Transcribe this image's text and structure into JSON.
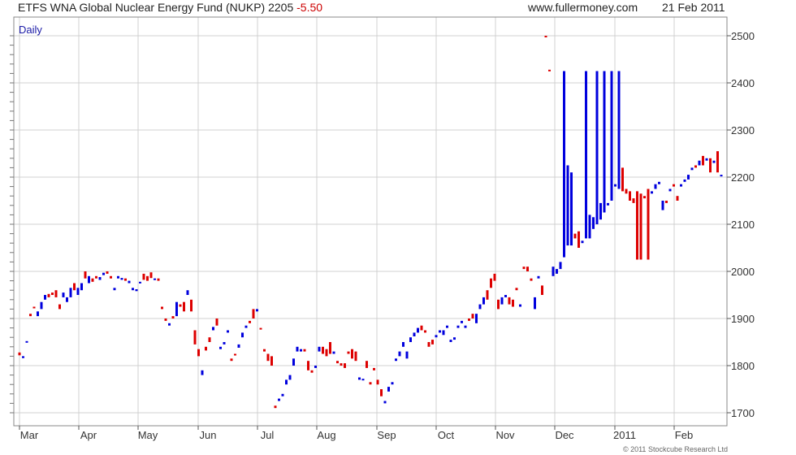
{
  "header": {
    "title": "ETFS WNA Global Nuclear Energy Fund (NUKP) 2205",
    "change": "-5.50",
    "site": "www.fullermoney.com",
    "date": "21 Feb 2011"
  },
  "footer": {
    "copyright": "© 2011 Stockcube Research Ltd"
  },
  "chart_data": {
    "type": "candlestick",
    "period_label": "Daily",
    "x_ticks": [
      "Mar",
      "Apr",
      "May",
      "Jun",
      "Jul",
      "Aug",
      "Sep",
      "Oct",
      "Nov",
      "Dec",
      "2011",
      "Feb"
    ],
    "y_ticks": [
      1700,
      1800,
      1900,
      2000,
      2100,
      2200,
      2300,
      2400,
      2500
    ],
    "ylim": [
      1680,
      2520
    ],
    "grid": true,
    "up_color": "#0000dd",
    "down_color": "#dd0000",
    "candles": [
      {
        "o": 1828,
        "c": 1822
      },
      {
        "o": 1816,
        "c": 1820
      },
      {
        "o": 1850,
        "c": 1852
      },
      {
        "o": 1910,
        "c": 1905
      },
      {
        "o": 1925,
        "c": 1922
      },
      {
        "o": 1905,
        "c": 1915
      },
      {
        "o": 1920,
        "c": 1935
      },
      {
        "o": 1940,
        "c": 1950
      },
      {
        "o": 1952,
        "c": 1945
      },
      {
        "o": 1955,
        "c": 1950
      },
      {
        "o": 1960,
        "c": 1945
      },
      {
        "o": 1930,
        "c": 1920
      },
      {
        "o": 1945,
        "c": 1955
      },
      {
        "o": 1935,
        "c": 1945
      },
      {
        "o": 1945,
        "c": 1965
      },
      {
        "o": 1975,
        "c": 1960
      },
      {
        "o": 1950,
        "c": 1965
      },
      {
        "o": 1960,
        "c": 1975
      },
      {
        "o": 2000,
        "c": 1985
      },
      {
        "o": 1975,
        "c": 1990
      },
      {
        "o": 1985,
        "c": 1978
      },
      {
        "o": 1990,
        "c": 1985
      },
      {
        "o": 1982,
        "c": 1988
      },
      {
        "o": 1992,
        "c": 1997
      },
      {
        "o": 2000,
        "c": 1995
      },
      {
        "o": 1990,
        "c": 1985
      },
      {
        "o": 1960,
        "c": 1965
      },
      {
        "o": 1985,
        "c": 1990
      },
      {
        "o": 1982,
        "c": 1986
      },
      {
        "o": 1985,
        "c": 1980
      },
      {
        "o": 1975,
        "c": 1980
      },
      {
        "o": 1960,
        "c": 1965
      },
      {
        "o": 1958,
        "c": 1962
      },
      {
        "o": 1975,
        "c": 1978
      },
      {
        "o": 1995,
        "c": 1982
      },
      {
        "o": 1990,
        "c": 1980
      },
      {
        "o": 1998,
        "c": 1986
      },
      {
        "o": 1982,
        "c": 1985
      },
      {
        "o": 1985,
        "c": 1980
      },
      {
        "o": 1925,
        "c": 1920
      },
      {
        "o": 1900,
        "c": 1895
      },
      {
        "o": 1885,
        "c": 1890
      },
      {
        "o": 1905,
        "c": 1900
      },
      {
        "o": 1905,
        "c": 1935
      },
      {
        "o": 1930,
        "c": 1925
      },
      {
        "o": 1935,
        "c": 1915
      },
      {
        "o": 1950,
        "c": 1960
      },
      {
        "o": 1940,
        "c": 1915
      },
      {
        "o": 1875,
        "c": 1845
      },
      {
        "o": 1835,
        "c": 1820
      },
      {
        "o": 1780,
        "c": 1790
      },
      {
        "o": 1840,
        "c": 1832
      },
      {
        "o": 1860,
        "c": 1850
      },
      {
        "o": 1875,
        "c": 1882
      },
      {
        "o": 1900,
        "c": 1885
      },
      {
        "o": 1835,
        "c": 1840
      },
      {
        "o": 1845,
        "c": 1850
      },
      {
        "o": 1870,
        "c": 1875
      },
      {
        "o": 1815,
        "c": 1810
      },
      {
        "o": 1825,
        "c": 1822
      },
      {
        "o": 1838,
        "c": 1845
      },
      {
        "o": 1860,
        "c": 1870
      },
      {
        "o": 1880,
        "c": 1885
      },
      {
        "o": 1895,
        "c": 1890
      },
      {
        "o": 1920,
        "c": 1900
      },
      {
        "o": 1915,
        "c": 1920
      },
      {
        "o": 1880,
        "c": 1878
      },
      {
        "o": 1835,
        "c": 1830
      },
      {
        "o": 1825,
        "c": 1810
      },
      {
        "o": 1820,
        "c": 1800
      },
      {
        "o": 1715,
        "c": 1710
      },
      {
        "o": 1725,
        "c": 1730
      },
      {
        "o": 1735,
        "c": 1740
      },
      {
        "o": 1760,
        "c": 1770
      },
      {
        "o": 1770,
        "c": 1780
      },
      {
        "o": 1800,
        "c": 1815
      },
      {
        "o": 1830,
        "c": 1840
      },
      {
        "o": 1830,
        "c": 1835
      },
      {
        "o": 1835,
        "c": 1830
      },
      {
        "o": 1810,
        "c": 1790
      },
      {
        "o": 1790,
        "c": 1785
      },
      {
        "o": 1795,
        "c": 1800
      },
      {
        "o": 1830,
        "c": 1840
      },
      {
        "o": 1840,
        "c": 1825
      },
      {
        "o": 1835,
        "c": 1820
      },
      {
        "o": 1850,
        "c": 1825
      },
      {
        "o": 1825,
        "c": 1830
      },
      {
        "o": 1810,
        "c": 1805
      },
      {
        "o": 1805,
        "c": 1800
      },
      {
        "o": 1805,
        "c": 1795
      },
      {
        "o": 1830,
        "c": 1825
      },
      {
        "o": 1835,
        "c": 1815
      },
      {
        "o": 1830,
        "c": 1810
      },
      {
        "o": 1770,
        "c": 1775
      },
      {
        "o": 1770,
        "c": 1772
      },
      {
        "o": 1810,
        "c": 1795
      },
      {
        "o": 1765,
        "c": 1760
      },
      {
        "o": 1795,
        "c": 1790
      },
      {
        "o": 1770,
        "c": 1760
      },
      {
        "o": 1750,
        "c": 1735
      },
      {
        "o": 1720,
        "c": 1725
      },
      {
        "o": 1745,
        "c": 1755
      },
      {
        "o": 1760,
        "c": 1765
      },
      {
        "o": 1810,
        "c": 1815
      },
      {
        "o": 1820,
        "c": 1830
      },
      {
        "o": 1840,
        "c": 1850
      },
      {
        "o": 1815,
        "c": 1830
      },
      {
        "o": 1850,
        "c": 1860
      },
      {
        "o": 1862,
        "c": 1870
      },
      {
        "o": 1870,
        "c": 1880
      },
      {
        "o": 1885,
        "c": 1875
      },
      {
        "o": 1875,
        "c": 1870
      },
      {
        "o": 1850,
        "c": 1840
      },
      {
        "o": 1855,
        "c": 1845
      },
      {
        "o": 1860,
        "c": 1865
      },
      {
        "o": 1870,
        "c": 1875
      },
      {
        "o": 1865,
        "c": 1875
      },
      {
        "o": 1880,
        "c": 1885
      },
      {
        "o": 1850,
        "c": 1855
      },
      {
        "o": 1855,
        "c": 1860
      },
      {
        "o": 1880,
        "c": 1885
      },
      {
        "o": 1890,
        "c": 1895
      },
      {
        "o": 1880,
        "c": 1885
      },
      {
        "o": 1900,
        "c": 1895
      },
      {
        "o": 1910,
        "c": 1900
      },
      {
        "o": 1890,
        "c": 1910
      },
      {
        "o": 1920,
        "c": 1930
      },
      {
        "o": 1930,
        "c": 1945
      },
      {
        "o": 1960,
        "c": 1940
      },
      {
        "o": 1985,
        "c": 1965
      },
      {
        "o": 1995,
        "c": 1980
      },
      {
        "o": 1940,
        "c": 1920
      },
      {
        "o": 1930,
        "c": 1945
      },
      {
        "o": 1945,
        "c": 1950
      },
      {
        "o": 1945,
        "c": 1930
      },
      {
        "o": 1940,
        "c": 1925
      },
      {
        "o": 1965,
        "c": 1960
      },
      {
        "o": 1925,
        "c": 1930
      },
      {
        "o": 2010,
        "c": 2005
      },
      {
        "o": 2010,
        "c": 2000
      },
      {
        "o": 1985,
        "c": 1980
      },
      {
        "o": 1920,
        "c": 1945
      },
      {
        "o": 1985,
        "c": 1990
      },
      {
        "o": 1970,
        "c": 1950
      },
      {
        "o": 2500,
        "c": 2497
      },
      {
        "o": 2428,
        "c": 2425
      },
      {
        "o": 1990,
        "c": 2010
      },
      {
        "o": 1995,
        "c": 2005
      },
      {
        "o": 2005,
        "c": 2020
      },
      {
        "o": 2030,
        "c": 2425
      },
      {
        "o": 2055,
        "c": 2225
      },
      {
        "o": 2055,
        "c": 2210
      },
      {
        "o": 2080,
        "c": 2070
      },
      {
        "o": 2085,
        "c": 2050
      },
      {
        "o": 2060,
        "c": 2065
      },
      {
        "o": 2070,
        "c": 2425
      },
      {
        "o": 2070,
        "c": 2120
      },
      {
        "o": 2090,
        "c": 2115
      },
      {
        "o": 2100,
        "c": 2425
      },
      {
        "o": 2110,
        "c": 2145
      },
      {
        "o": 2125,
        "c": 2425
      },
      {
        "o": 2140,
        "c": 2145
      },
      {
        "o": 2150,
        "c": 2425
      },
      {
        "o": 2180,
        "c": 2185
      },
      {
        "o": 2175,
        "c": 2425
      },
      {
        "o": 2220,
        "c": 2170
      },
      {
        "o": 2175,
        "c": 2165
      },
      {
        "o": 2170,
        "c": 2150
      },
      {
        "o": 2155,
        "c": 2145
      },
      {
        "o": 2170,
        "c": 2025
      },
      {
        "o": 2165,
        "c": 2025
      },
      {
        "o": 2160,
        "c": 2155
      },
      {
        "o": 2175,
        "c": 2025
      },
      {
        "o": 2165,
        "c": 2170
      },
      {
        "o": 2175,
        "c": 2185
      },
      {
        "o": 2185,
        "c": 2190
      },
      {
        "o": 2130,
        "c": 2150
      },
      {
        "o": 2150,
        "c": 2145
      },
      {
        "o": 2170,
        "c": 2175
      },
      {
        "o": 2185,
        "c": 2180
      },
      {
        "o": 2160,
        "c": 2150
      },
      {
        "o": 2180,
        "c": 2185
      },
      {
        "o": 2190,
        "c": 2195
      },
      {
        "o": 2195,
        "c": 2205
      },
      {
        "o": 2215,
        "c": 2220
      },
      {
        "o": 2225,
        "c": 2220
      },
      {
        "o": 2225,
        "c": 2235
      },
      {
        "o": 2245,
        "c": 2225
      },
      {
        "o": 2235,
        "c": 2240
      },
      {
        "o": 2240,
        "c": 2210
      },
      {
        "o": 2230,
        "c": 2235
      },
      {
        "o": 2255,
        "c": 2210
      },
      {
        "o": 2205,
        "c": 2205
      }
    ]
  }
}
